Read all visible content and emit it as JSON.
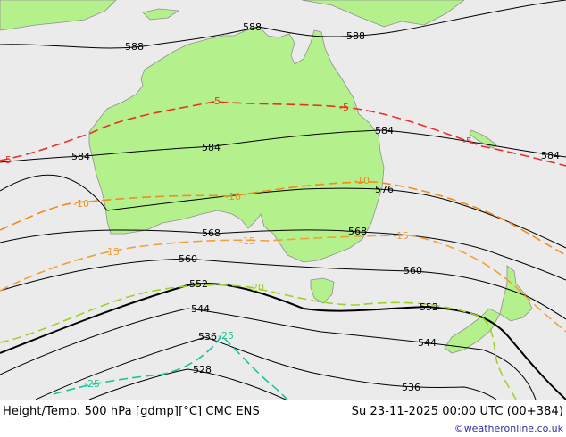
{
  "footer": {
    "title": "Height/Temp. 500 hPa [gdmp][°C] CMC ENS",
    "valid_time": "Su 23-11-2025 00:00 UTC (00+384)",
    "credit": "©weatheronline.co.uk"
  },
  "colors": {
    "sea": "#ebebeb",
    "land": "#b4f08c",
    "coast": "#909090",
    "height_contour": "#000000",
    "temp_minus5": "#e8302c",
    "temp_minus10": "#f08c1e",
    "temp_minus15": "#f0a03c",
    "temp_minus20": "#9cd22a",
    "temp_minus25": "#1ec39a"
  },
  "height_labels": [
    "588",
    "588",
    "588",
    "584",
    "584",
    "584",
    "584",
    "576",
    "568",
    "568",
    "560",
    "560",
    "552",
    "552",
    "544",
    "544",
    "536",
    "536",
    "528"
  ],
  "temp_labels": [
    "-5",
    "-5",
    "-5",
    "-5",
    "-10",
    "-10",
    "-10",
    "-15",
    "-15",
    "-15",
    "-20",
    "-25",
    "-25"
  ]
}
